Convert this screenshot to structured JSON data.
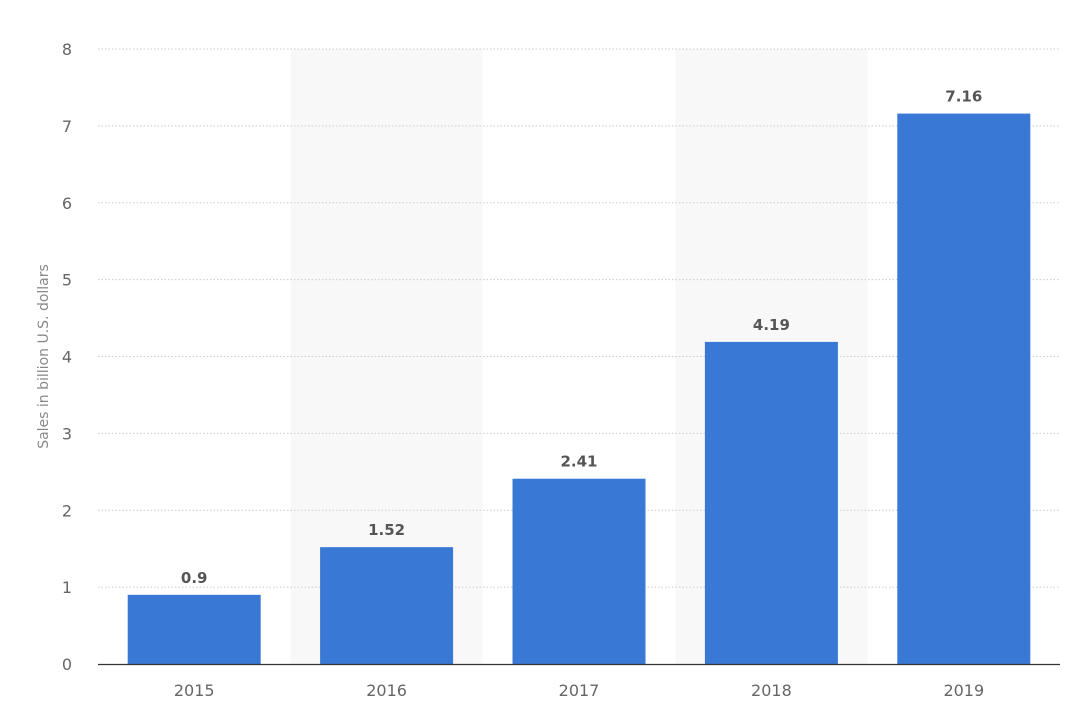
{
  "chart_data": {
    "type": "bar",
    "title": "",
    "xlabel": "",
    "ylabel": "Sales in billion U.S. dollars",
    "categories": [
      "2015",
      "2016",
      "2017",
      "2018",
      "2019"
    ],
    "values": [
      0.9,
      1.52,
      2.41,
      4.19,
      7.16
    ],
    "value_labels": [
      "0.9",
      "1.52",
      "2.41",
      "4.19",
      "7.16"
    ],
    "ylim": [
      0,
      8
    ],
    "yticks": [
      0,
      1,
      2,
      3,
      4,
      5,
      6,
      7,
      8
    ],
    "grid": true,
    "grid_style": "dotted",
    "alternating_band_background": true,
    "legend": "none",
    "colors": {
      "bar": "#3a78d6",
      "band": "#f8f8f8",
      "grid": "#cccccc",
      "axis": "#333333",
      "tick_text": "#666666",
      "value_label": "#555555"
    }
  }
}
